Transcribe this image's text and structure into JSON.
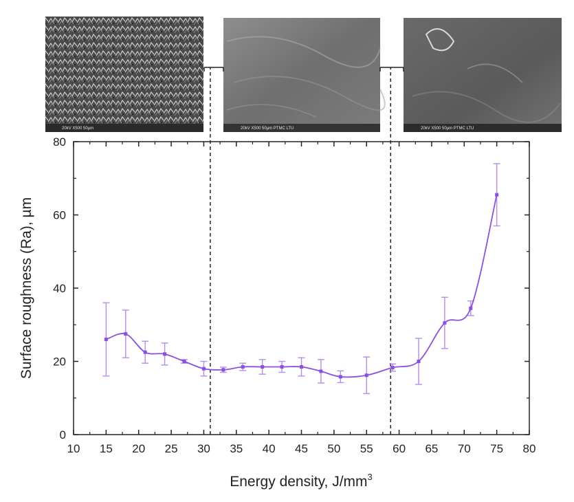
{
  "chart_data": {
    "type": "line",
    "title": "",
    "xlabel": "Energy density, J/mm",
    "xlabel_sup": "3",
    "ylabel": "Surface roughness (Ra), µm",
    "xlim": [
      10,
      80
    ],
    "ylim": [
      0,
      80
    ],
    "x_ticks": [
      10,
      15,
      20,
      25,
      30,
      35,
      40,
      45,
      50,
      55,
      60,
      65,
      70,
      75,
      80
    ],
    "y_ticks": [
      0,
      20,
      40,
      60,
      80
    ],
    "grid": false,
    "legend": "none",
    "series": [
      {
        "color": "#8a4fe6",
        "x": [
          15,
          18,
          21,
          24,
          27,
          30,
          33,
          36,
          39,
          42,
          45,
          48,
          51,
          55,
          59,
          63,
          67,
          71,
          75
        ],
        "y": [
          26,
          27.5,
          22.5,
          22,
          20,
          18,
          17.7,
          18.5,
          18.5,
          18.5,
          18.5,
          17.3,
          15.8,
          16.2,
          18.3,
          20,
          30.5,
          34.5,
          65.5
        ],
        "err": [
          10,
          6.5,
          3,
          3,
          0.5,
          2,
          0.7,
          1,
          2,
          1.5,
          2.5,
          3.2,
          1.6,
          5,
          1,
          6.3,
          7,
          2,
          8.5
        ]
      }
    ],
    "annotations": {
      "divider_x": [
        31,
        58.7
      ],
      "inset_images": [
        {
          "label": "SEM surface micrograph (low energy density)",
          "scale_text": "20kV  X500  50µm"
        },
        {
          "label": "SEM surface micrograph (mid energy density)",
          "scale_text": "20kV  X500  50µm   PTMC LTU"
        },
        {
          "label": "SEM surface micrograph (high energy density)",
          "scale_text": "20kV  X500  50µm   PTMC LTU"
        }
      ]
    }
  }
}
